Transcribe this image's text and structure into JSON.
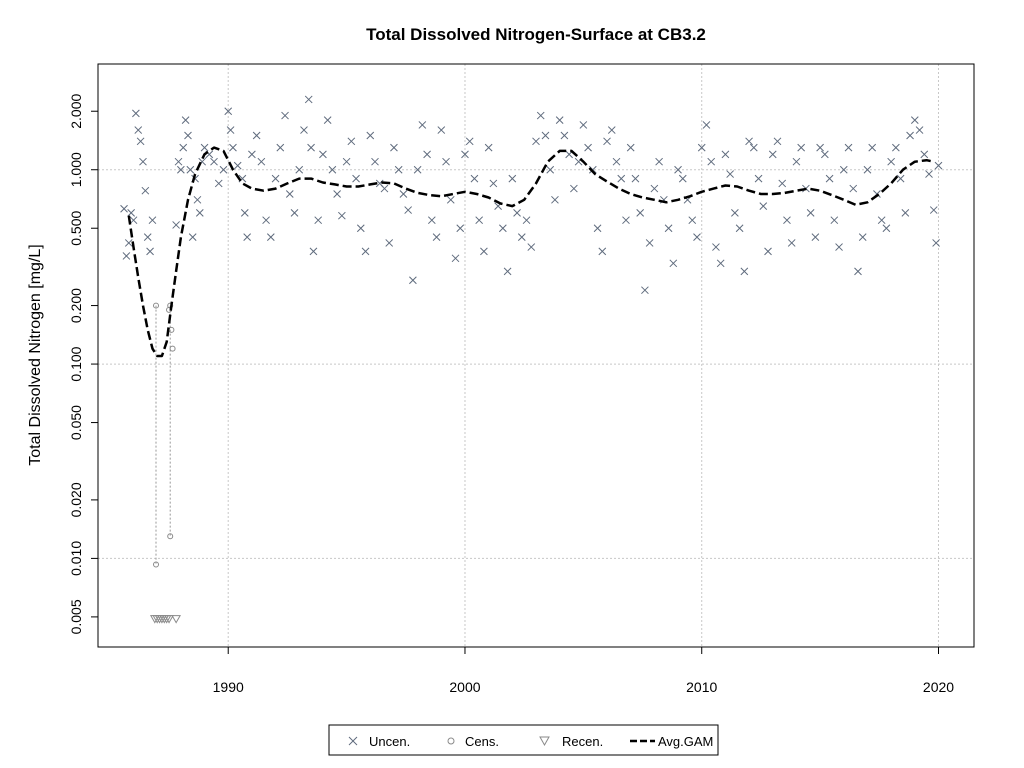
{
  "chart_data": {
    "type": "scatter",
    "title": "Total Dissolved Nitrogen-Surface at CB3.2",
    "xlabel": "",
    "ylabel": "Total Dissolved Nitrogen [mg/L]",
    "x_range": [
      1984.5,
      2021.5
    ],
    "y_range": [
      0.0035,
      3.5
    ],
    "y_scale": "log",
    "x_ticks": [
      1990,
      2000,
      2010,
      2020
    ],
    "y_ticks": [
      0.005,
      0.01,
      0.02,
      0.05,
      0.1,
      0.2,
      0.5,
      1.0,
      2.0
    ],
    "y_tick_labels": [
      "0.005",
      "0.010",
      "0.020",
      "0.050",
      "0.100",
      "0.200",
      "0.500",
      "1.000",
      "2.000"
    ],
    "grid": true,
    "legend_position": "bottom-center",
    "legend": [
      {
        "label": "Uncen.",
        "symbol": "x"
      },
      {
        "label": "Cens.",
        "symbol": "circle"
      },
      {
        "label": "Recen.",
        "symbol": "triangle-down"
      },
      {
        "label": "Avg.GAM",
        "symbol": "dashed-line"
      }
    ],
    "colors": {
      "uncensored": "#5f6b7d",
      "censored": "#8a8a8a",
      "gam": "#000000",
      "grid": "#c8c8c8"
    },
    "uncensored": [
      [
        1985.6,
        0.63
      ],
      [
        1985.7,
        0.36
      ],
      [
        1985.8,
        0.42
      ],
      [
        1985.9,
        0.6
      ],
      [
        1986.0,
        0.55
      ],
      [
        1986.1,
        1.95
      ],
      [
        1986.2,
        1.6
      ],
      [
        1986.3,
        1.4
      ],
      [
        1986.4,
        1.1
      ],
      [
        1986.5,
        0.78
      ],
      [
        1986.6,
        0.45
      ],
      [
        1986.7,
        0.38
      ],
      [
        1986.8,
        0.55
      ],
      [
        1987.8,
        0.52
      ],
      [
        1987.9,
        1.1
      ],
      [
        1988.0,
        1.0
      ],
      [
        1988.1,
        1.3
      ],
      [
        1988.2,
        1.8
      ],
      [
        1988.3,
        1.5
      ],
      [
        1988.4,
        1.0
      ],
      [
        1988.5,
        0.45
      ],
      [
        1988.6,
        0.9
      ],
      [
        1988.7,
        0.7
      ],
      [
        1988.8,
        0.6
      ],
      [
        1988.9,
        1.1
      ],
      [
        1989.0,
        1.3
      ],
      [
        1989.2,
        1.2
      ],
      [
        1989.4,
        1.1
      ],
      [
        1989.6,
        0.85
      ],
      [
        1989.8,
        1.0
      ],
      [
        1990.0,
        2.0
      ],
      [
        1990.1,
        1.6
      ],
      [
        1990.2,
        1.3
      ],
      [
        1990.4,
        1.05
      ],
      [
        1990.6,
        0.9
      ],
      [
        1990.7,
        0.6
      ],
      [
        1990.8,
        0.45
      ],
      [
        1991.0,
        1.2
      ],
      [
        1991.2,
        1.5
      ],
      [
        1991.4,
        1.1
      ],
      [
        1991.6,
        0.55
      ],
      [
        1991.8,
        0.45
      ],
      [
        1992.0,
        0.9
      ],
      [
        1992.2,
        1.3
      ],
      [
        1992.4,
        1.9
      ],
      [
        1992.6,
        0.75
      ],
      [
        1992.8,
        0.6
      ],
      [
        1993.0,
        1.0
      ],
      [
        1993.2,
        1.6
      ],
      [
        1993.4,
        2.3
      ],
      [
        1993.5,
        1.3
      ],
      [
        1993.6,
        0.38
      ],
      [
        1993.8,
        0.55
      ],
      [
        1994.0,
        1.2
      ],
      [
        1994.2,
        1.8
      ],
      [
        1994.4,
        1.0
      ],
      [
        1994.6,
        0.75
      ],
      [
        1994.8,
        0.58
      ],
      [
        1995.0,
        1.1
      ],
      [
        1995.2,
        1.4
      ],
      [
        1995.4,
        0.9
      ],
      [
        1995.6,
        0.5
      ],
      [
        1995.8,
        0.38
      ],
      [
        1996.0,
        1.5
      ],
      [
        1996.2,
        1.1
      ],
      [
        1996.4,
        0.85
      ],
      [
        1996.6,
        0.8
      ],
      [
        1996.8,
        0.42
      ],
      [
        1997.0,
        1.3
      ],
      [
        1997.2,
        1.0
      ],
      [
        1997.4,
        0.75
      ],
      [
        1997.6,
        0.62
      ],
      [
        1997.8,
        0.27
      ],
      [
        1998.0,
        1.0
      ],
      [
        1998.2,
        1.7
      ],
      [
        1998.4,
        1.2
      ],
      [
        1998.6,
        0.55
      ],
      [
        1998.8,
        0.45
      ],
      [
        1999.0,
        1.6
      ],
      [
        1999.2,
        1.1
      ],
      [
        1999.4,
        0.7
      ],
      [
        1999.6,
        0.35
      ],
      [
        1999.8,
        0.5
      ],
      [
        2000.0,
        1.2
      ],
      [
        2000.2,
        1.4
      ],
      [
        2000.4,
        0.9
      ],
      [
        2000.6,
        0.55
      ],
      [
        2000.8,
        0.38
      ],
      [
        2001.0,
        1.3
      ],
      [
        2001.2,
        0.85
      ],
      [
        2001.4,
        0.65
      ],
      [
        2001.6,
        0.5
      ],
      [
        2001.8,
        0.3
      ],
      [
        2002.0,
        0.9
      ],
      [
        2002.2,
        0.6
      ],
      [
        2002.4,
        0.45
      ],
      [
        2002.6,
        0.55
      ],
      [
        2002.8,
        0.4
      ],
      [
        2003.0,
        1.4
      ],
      [
        2003.2,
        1.9
      ],
      [
        2003.4,
        1.5
      ],
      [
        2003.6,
        1.0
      ],
      [
        2003.8,
        0.7
      ],
      [
        2004.0,
        1.8
      ],
      [
        2004.2,
        1.5
      ],
      [
        2004.4,
        1.2
      ],
      [
        2004.6,
        0.8
      ],
      [
        2004.8,
        1.1
      ],
      [
        2005.0,
        1.7
      ],
      [
        2005.2,
        1.3
      ],
      [
        2005.4,
        1.0
      ],
      [
        2005.6,
        0.5
      ],
      [
        2005.8,
        0.38
      ],
      [
        2006.0,
        1.4
      ],
      [
        2006.2,
        1.6
      ],
      [
        2006.4,
        1.1
      ],
      [
        2006.6,
        0.9
      ],
      [
        2006.8,
        0.55
      ],
      [
        2007.0,
        1.3
      ],
      [
        2007.2,
        0.9
      ],
      [
        2007.4,
        0.6
      ],
      [
        2007.6,
        0.24
      ],
      [
        2007.8,
        0.42
      ],
      [
        2008.0,
        0.8
      ],
      [
        2008.2,
        1.1
      ],
      [
        2008.4,
        0.7
      ],
      [
        2008.6,
        0.5
      ],
      [
        2008.8,
        0.33
      ],
      [
        2009.0,
        1.0
      ],
      [
        2009.2,
        0.9
      ],
      [
        2009.4,
        0.7
      ],
      [
        2009.6,
        0.55
      ],
      [
        2009.8,
        0.45
      ],
      [
        2010.0,
        1.3
      ],
      [
        2010.2,
        1.7
      ],
      [
        2010.4,
        1.1
      ],
      [
        2010.6,
        0.4
      ],
      [
        2010.8,
        0.33
      ],
      [
        2011.0,
        1.2
      ],
      [
        2011.2,
        0.95
      ],
      [
        2011.4,
        0.6
      ],
      [
        2011.6,
        0.5
      ],
      [
        2011.8,
        0.3
      ],
      [
        2012.0,
        1.4
      ],
      [
        2012.2,
        1.3
      ],
      [
        2012.4,
        0.9
      ],
      [
        2012.6,
        0.65
      ],
      [
        2012.8,
        0.38
      ],
      [
        2013.0,
        1.2
      ],
      [
        2013.2,
        1.4
      ],
      [
        2013.4,
        0.85
      ],
      [
        2013.6,
        0.55
      ],
      [
        2013.8,
        0.42
      ],
      [
        2014.0,
        1.1
      ],
      [
        2014.2,
        1.3
      ],
      [
        2014.4,
        0.8
      ],
      [
        2014.6,
        0.6
      ],
      [
        2014.8,
        0.45
      ],
      [
        2015.0,
        1.3
      ],
      [
        2015.2,
        1.2
      ],
      [
        2015.4,
        0.9
      ],
      [
        2015.6,
        0.55
      ],
      [
        2015.8,
        0.4
      ],
      [
        2016.0,
        1.0
      ],
      [
        2016.2,
        1.3
      ],
      [
        2016.4,
        0.8
      ],
      [
        2016.6,
        0.3
      ],
      [
        2016.8,
        0.45
      ],
      [
        2017.0,
        1.0
      ],
      [
        2017.2,
        1.3
      ],
      [
        2017.4,
        0.75
      ],
      [
        2017.6,
        0.55
      ],
      [
        2017.8,
        0.5
      ],
      [
        2018.0,
        1.1
      ],
      [
        2018.2,
        1.3
      ],
      [
        2018.4,
        0.9
      ],
      [
        2018.6,
        0.6
      ],
      [
        2018.8,
        1.5
      ],
      [
        2019.0,
        1.8
      ],
      [
        2019.2,
        1.6
      ],
      [
        2019.4,
        1.2
      ],
      [
        2019.6,
        0.95
      ],
      [
        2019.8,
        0.62
      ],
      [
        2019.9,
        0.42
      ],
      [
        2020.0,
        1.05
      ]
    ],
    "censored": [
      [
        1986.95,
        0.2
      ],
      [
        1986.95,
        0.0093
      ],
      [
        1987.55,
        0.2
      ],
      [
        1987.55,
        0.013
      ],
      [
        1987.5,
        0.19
      ],
      [
        1987.6,
        0.15
      ],
      [
        1987.65,
        0.12
      ]
    ],
    "recensored_x": [
      1986.9,
      1987.0,
      1987.1,
      1987.2,
      1987.3,
      1987.4,
      1987.5,
      1987.8
    ],
    "recensored_y": 0.0049,
    "gam": [
      [
        1985.8,
        0.58
      ],
      [
        1986.0,
        0.4
      ],
      [
        1986.2,
        0.28
      ],
      [
        1986.4,
        0.2
      ],
      [
        1986.6,
        0.15
      ],
      [
        1986.8,
        0.12
      ],
      [
        1987.0,
        0.11
      ],
      [
        1987.2,
        0.11
      ],
      [
        1987.4,
        0.13
      ],
      [
        1987.6,
        0.2
      ],
      [
        1987.8,
        0.3
      ],
      [
        1988.0,
        0.45
      ],
      [
        1988.3,
        0.7
      ],
      [
        1988.6,
        0.95
      ],
      [
        1989.0,
        1.2
      ],
      [
        1989.4,
        1.3
      ],
      [
        1989.8,
        1.25
      ],
      [
        1990.2,
        1.0
      ],
      [
        1990.6,
        0.85
      ],
      [
        1991.0,
        0.8
      ],
      [
        1991.5,
        0.78
      ],
      [
        1992.0,
        0.8
      ],
      [
        1992.5,
        0.85
      ],
      [
        1993.0,
        0.9
      ],
      [
        1993.5,
        0.9
      ],
      [
        1994.0,
        0.86
      ],
      [
        1994.5,
        0.84
      ],
      [
        1995.0,
        0.82
      ],
      [
        1995.5,
        0.82
      ],
      [
        1996.0,
        0.84
      ],
      [
        1996.5,
        0.86
      ],
      [
        1997.0,
        0.85
      ],
      [
        1997.5,
        0.8
      ],
      [
        1998.0,
        0.76
      ],
      [
        1998.5,
        0.74
      ],
      [
        1999.0,
        0.73
      ],
      [
        1999.5,
        0.75
      ],
      [
        2000.0,
        0.77
      ],
      [
        2000.5,
        0.75
      ],
      [
        2001.0,
        0.72
      ],
      [
        2001.5,
        0.67
      ],
      [
        2002.0,
        0.65
      ],
      [
        2002.5,
        0.7
      ],
      [
        2003.0,
        0.85
      ],
      [
        2003.5,
        1.1
      ],
      [
        2004.0,
        1.25
      ],
      [
        2004.5,
        1.25
      ],
      [
        2005.0,
        1.1
      ],
      [
        2005.5,
        0.95
      ],
      [
        2006.0,
        0.87
      ],
      [
        2006.5,
        0.8
      ],
      [
        2007.0,
        0.75
      ],
      [
        2007.5,
        0.72
      ],
      [
        2008.0,
        0.7
      ],
      [
        2008.5,
        0.68
      ],
      [
        2009.0,
        0.7
      ],
      [
        2009.5,
        0.73
      ],
      [
        2010.0,
        0.77
      ],
      [
        2010.5,
        0.8
      ],
      [
        2011.0,
        0.83
      ],
      [
        2011.5,
        0.82
      ],
      [
        2012.0,
        0.78
      ],
      [
        2012.5,
        0.75
      ],
      [
        2013.0,
        0.75
      ],
      [
        2013.5,
        0.76
      ],
      [
        2014.0,
        0.78
      ],
      [
        2014.5,
        0.8
      ],
      [
        2015.0,
        0.78
      ],
      [
        2015.5,
        0.74
      ],
      [
        2016.0,
        0.7
      ],
      [
        2016.5,
        0.66
      ],
      [
        2017.0,
        0.68
      ],
      [
        2017.5,
        0.75
      ],
      [
        2018.0,
        0.85
      ],
      [
        2018.5,
        1.0
      ],
      [
        2019.0,
        1.1
      ],
      [
        2019.5,
        1.12
      ],
      [
        2019.8,
        1.1
      ]
    ]
  }
}
